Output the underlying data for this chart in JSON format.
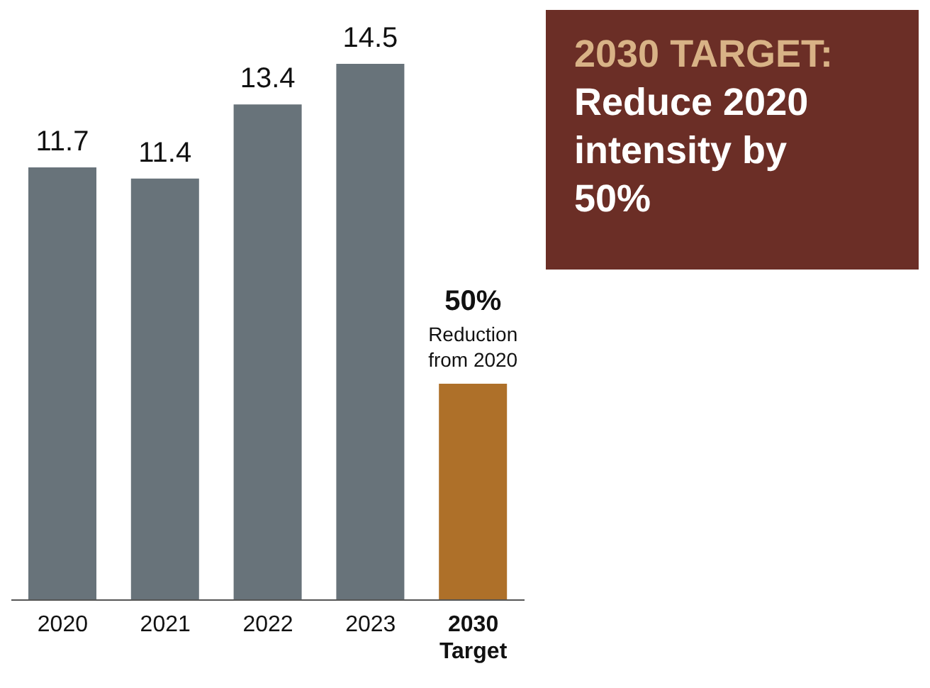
{
  "chart_data": {
    "type": "bar",
    "categories": [
      "2020",
      "2021",
      "2022",
      "2023",
      "2030\nTarget"
    ],
    "values": [
      11.7,
      11.4,
      13.4,
      14.5,
      5.85
    ],
    "colors": [
      "#68737a",
      "#68737a",
      "#68737a",
      "#68737a",
      "#ae7029"
    ],
    "value_labels": [
      "11.7",
      "11.4",
      "13.4",
      "14.5",
      null
    ],
    "annotations": [
      "2030 TARGET:",
      "Reduce 2020 intensity by 50%",
      {
        "text": "50%\nReduction\nfrom 2020",
        "x": "2030\nTarget",
        "y": 5.85
      }
    ],
    "grid": false,
    "legend": false
  }
}
